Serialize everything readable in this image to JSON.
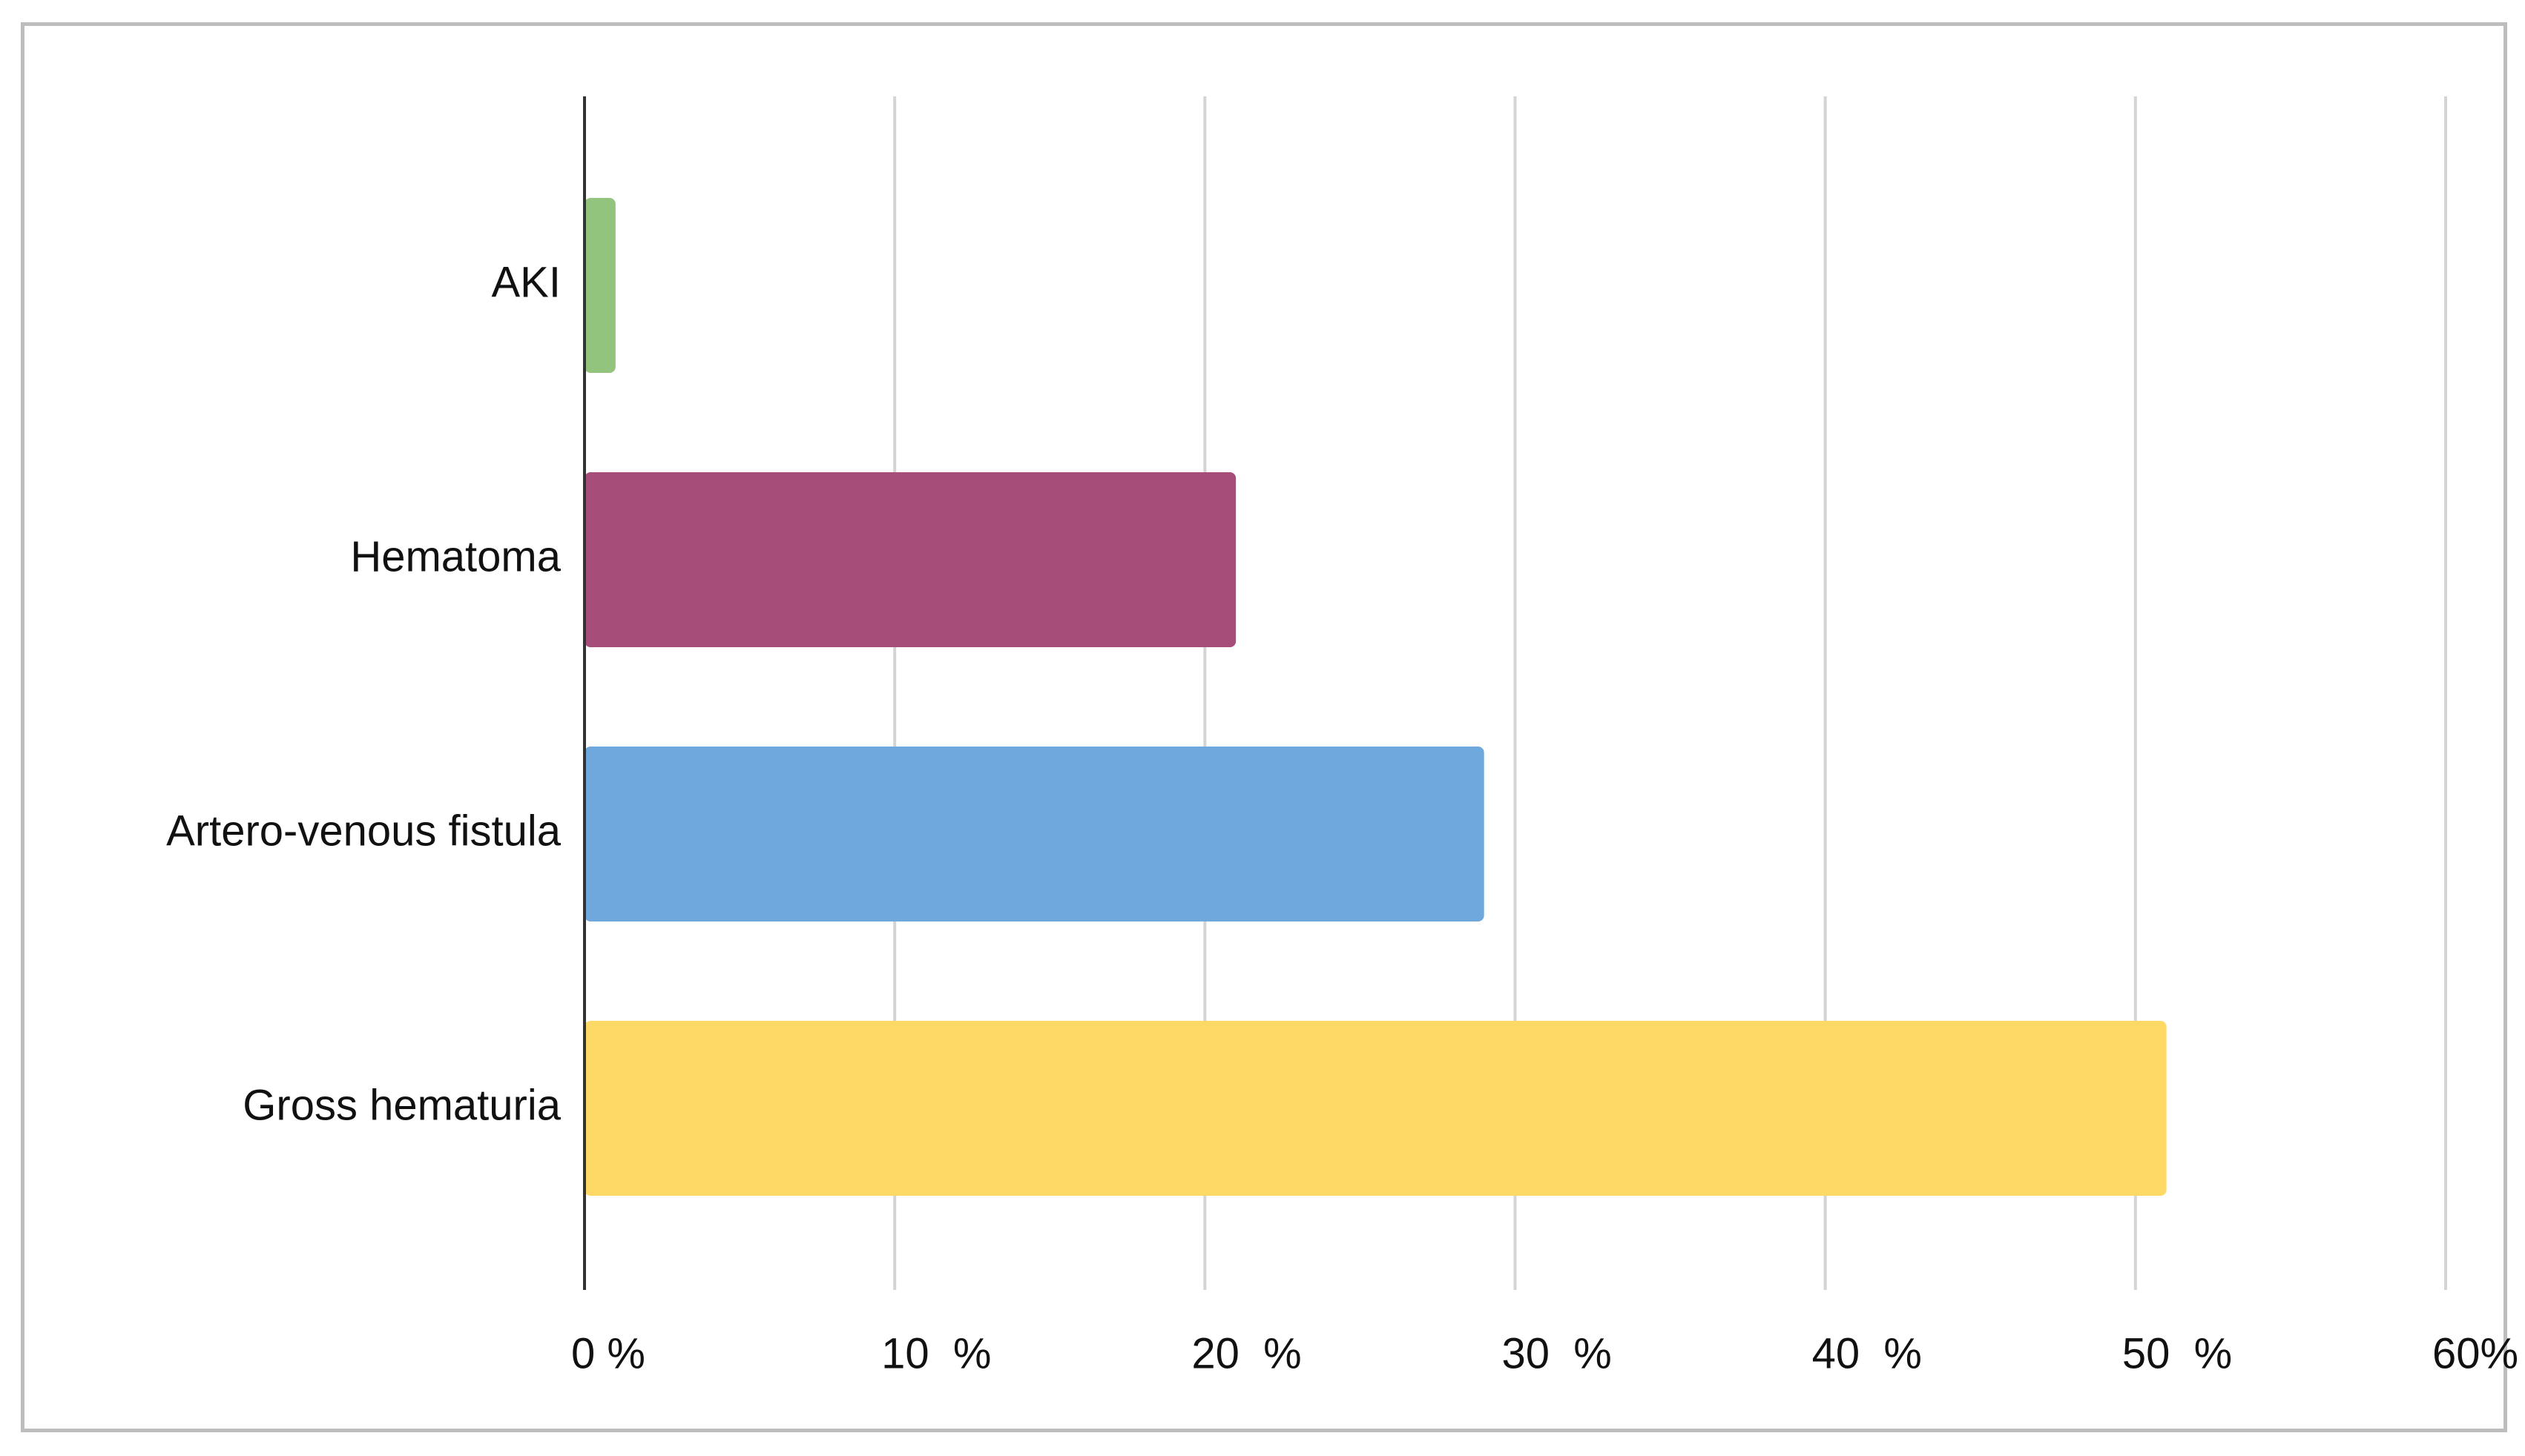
{
  "chart_data": {
    "type": "bar",
    "orientation": "horizontal",
    "categories": [
      "AKI",
      "Hematoma",
      "Artero-venous fistula",
      "Gross hematuria"
    ],
    "values": [
      1,
      21,
      29,
      51
    ],
    "colors": [
      "#93c47d",
      "#a64d79",
      "#6fa8dc",
      "#ffd966"
    ],
    "ticks": [
      0,
      10,
      20,
      30,
      40,
      50,
      60
    ],
    "tick_labels": [
      "0 %",
      "10  %",
      "20  %",
      "30  %",
      "40  %",
      "50  %",
      "60%"
    ],
    "xlim": [
      0,
      60
    ],
    "unit": "%",
    "grid": true,
    "legend": "none",
    "title": "",
    "xlabel": "",
    "ylabel": ""
  }
}
